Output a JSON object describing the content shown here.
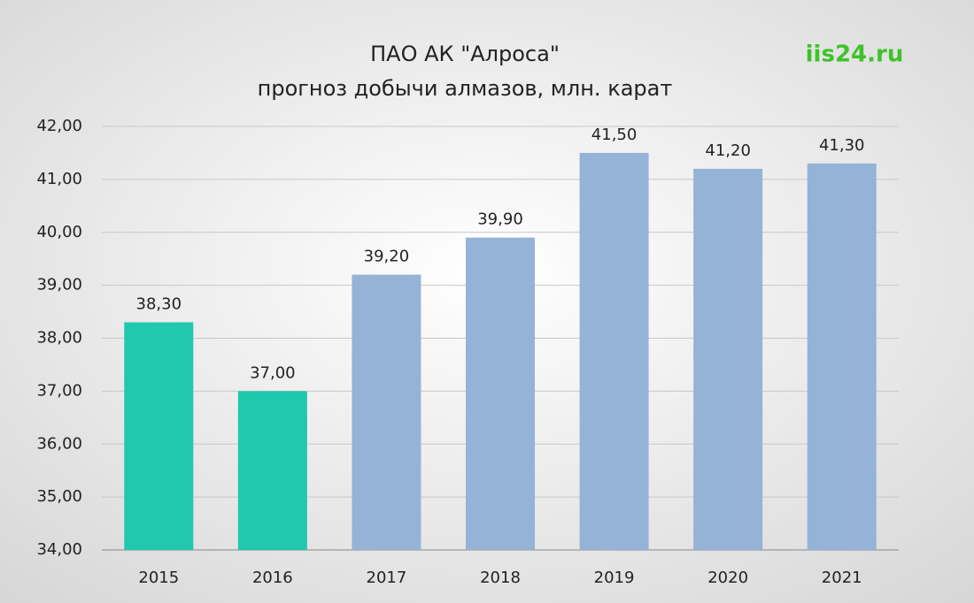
{
  "chart_data": {
    "type": "bar",
    "title": "ПАО АК \"Алроса\"",
    "subtitle": "прогноз добычи алмазов, млн. карат",
    "watermark": "iis24.ru",
    "categories": [
      "2015",
      "2016",
      "2017",
      "2018",
      "2019",
      "2020",
      "2021"
    ],
    "values": [
      38.3,
      37.0,
      39.2,
      39.9,
      41.5,
      41.2,
      41.3
    ],
    "value_labels": [
      "38,30",
      "37,00",
      "39,20",
      "39,90",
      "41,50",
      "41,20",
      "41,30"
    ],
    "colors": [
      "#20c8ad",
      "#20c8ad",
      "#95b3d7",
      "#95b3d7",
      "#95b3d7",
      "#95b3d7",
      "#95b3d7"
    ],
    "ylim": [
      34,
      42
    ],
    "yticks": [
      {
        "value": 34,
        "label": "34,00"
      },
      {
        "value": 35,
        "label": "35,00"
      },
      {
        "value": 36,
        "label": "36,00"
      },
      {
        "value": 37,
        "label": "37,00"
      },
      {
        "value": 38,
        "label": "38,00"
      },
      {
        "value": 39,
        "label": "39,00"
      },
      {
        "value": 40,
        "label": "40,00"
      },
      {
        "value": 41,
        "label": "41,00"
      },
      {
        "value": 42,
        "label": "42,00"
      }
    ],
    "grid": true
  }
}
